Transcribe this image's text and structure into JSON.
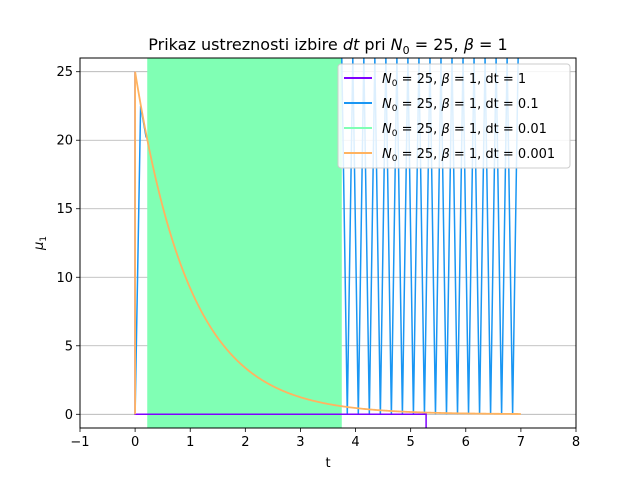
{
  "chart_data": {
    "type": "line",
    "title": {
      "prefix": "Prikaz ustreznosti izbire ",
      "var": "dt",
      "mid": " pri ",
      "n_sym": "N",
      "n_sub": "0",
      "n_val": " = 25, ",
      "beta": "β",
      "beta_val": " = 1"
    },
    "xlabel": "t",
    "ylabel": {
      "sym": "μ",
      "sub": "1"
    },
    "xlim": [
      -1,
      8
    ],
    "ylim": [
      -1,
      26
    ],
    "xticks": [
      -1,
      0,
      1,
      2,
      3,
      4,
      5,
      6,
      7,
      8
    ],
    "yticks": [
      0,
      5,
      10,
      15,
      20,
      25
    ],
    "grid": "y",
    "legend_position": "top-right",
    "series": [
      {
        "label": {
          "n": "N",
          "sub": "0",
          "rest": " = 25, ",
          "b": "β",
          "brest": " = 1, dt = 1"
        },
        "color": "#7f00ff",
        "points": [
          [
            0,
            25
          ],
          [
            0,
            0
          ],
          [
            0.2,
            0
          ],
          [
            0.2,
            0
          ],
          [
            5.28,
            0
          ],
          [
            5.28,
            -1
          ]
        ]
      },
      {
        "label": {
          "n": "N",
          "sub": "0",
          "rest": " = 25, ",
          "b": "β",
          "brest": " = 1, dt = 0.1"
        },
        "color": "#1996f3",
        "points": [
          [
            0,
            25
          ],
          [
            0,
            0
          ],
          [
            0.1,
            22.5
          ],
          [
            0.2,
            20.2
          ]
        ],
        "oscillation": {
          "t_start": 3.75,
          "t_end": 7.0,
          "low": 0,
          "high": 26,
          "step": 0.1
        }
      },
      {
        "label": {
          "n": "N",
          "sub": "0",
          "rest": " = 25, ",
          "b": "β",
          "brest": " = 1, dt = 0.01"
        },
        "color": "#80ffb4",
        "fill_band": {
          "t_start": 0.22,
          "t_end": 3.75,
          "low": -1,
          "high": 26
        }
      },
      {
        "label": {
          "n": "N",
          "sub": "0",
          "rest": " = 25, ",
          "b": "β",
          "brest": " = 1, dt = 0.001"
        },
        "color": "#ffb360",
        "decay": {
          "n0": 25,
          "rate": 1,
          "t_end": 7.0
        }
      }
    ]
  }
}
